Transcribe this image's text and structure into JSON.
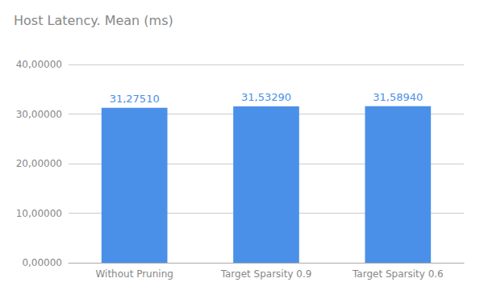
{
  "chart_data": {
    "type": "bar",
    "title": "Host Latency. Mean (ms)",
    "categories": [
      "Without Pruning",
      "Target Sparsity 0.9",
      "Target Sparsity 0.6"
    ],
    "values": [
      31.2751,
      31.5329,
      31.5894
    ],
    "value_labels": [
      "31,27510",
      "31,53290",
      "31,58940"
    ],
    "color": "#4a90e8",
    "ylim": [
      0,
      40
    ],
    "yticks": [
      {
        "value": 0,
        "label": "0,00000"
      },
      {
        "value": 10,
        "label": "10,00000"
      },
      {
        "value": 20,
        "label": "20,00000"
      },
      {
        "value": 30,
        "label": "30,00000"
      },
      {
        "value": 40,
        "label": "40,00000"
      }
    ],
    "grid": true,
    "data_labels": true
  }
}
